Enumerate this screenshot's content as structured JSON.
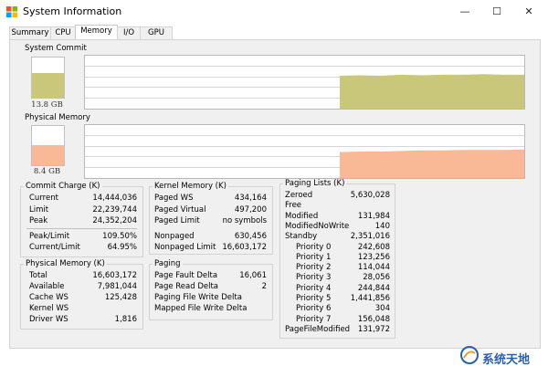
{
  "window": {
    "title": "System Information",
    "icon": "system-information-app-icon",
    "controls": [
      {
        "name": "minimize-button",
        "glyph": "—"
      },
      {
        "name": "maximize-button",
        "glyph": "☐"
      },
      {
        "name": "close-button",
        "glyph": "✕"
      }
    ]
  },
  "tabs": [
    {
      "label": "Summary",
      "active": false
    },
    {
      "label": "CPU",
      "active": false
    },
    {
      "label": "Memory",
      "active": true
    },
    {
      "label": "I/O",
      "active": false
    },
    {
      "label": "GPU",
      "active": false
    }
  ],
  "system_commit": {
    "label": "System Commit",
    "value": "13.8 GB",
    "gauge_fraction": 0.62,
    "color": "#c9c77a",
    "history": {
      "start_fraction": 0.58,
      "levels": [
        0.62,
        0.63,
        0.62,
        0.64,
        0.63,
        0.64,
        0.64,
        0.65,
        0.64,
        0.64
      ]
    }
  },
  "physical_memory_graph": {
    "label": "Physical Memory",
    "value": "8.4 GB",
    "gauge_fraction": 0.52,
    "color": "#f9b896",
    "history": {
      "start_fraction": 0.58,
      "levels": [
        0.49,
        0.5,
        0.5,
        0.51,
        0.52,
        0.52,
        0.53,
        0.53,
        0.53,
        0.54
      ]
    }
  },
  "commit_charge": {
    "title": "Commit Charge (K)",
    "rows": [
      {
        "label": "Current",
        "value": "14,444,036"
      },
      {
        "label": "Limit",
        "value": "22,239,744"
      },
      {
        "label": "Peak",
        "value": "24,352,204"
      }
    ],
    "rows2": [
      {
        "label": "Peak/Limit",
        "value": "109.50%"
      },
      {
        "label": "Current/Limit",
        "value": "64.95%"
      }
    ]
  },
  "physical_memory": {
    "title": "Physical Memory (K)",
    "rows": [
      {
        "label": "Total",
        "value": "16,603,172"
      },
      {
        "label": "Available",
        "value": "7,981,044"
      },
      {
        "label": "Cache WS",
        "value": "125,428"
      },
      {
        "label": "Kernel WS",
        "value": ""
      },
      {
        "label": "Driver WS",
        "value": "1,816"
      }
    ]
  },
  "kernel_memory": {
    "title": "Kernel Memory (K)",
    "rows": [
      {
        "label": "Paged WS",
        "value": "434,164"
      },
      {
        "label": "Paged Virtual",
        "value": "497,200"
      },
      {
        "label": "Paged Limit",
        "value": "no symbols"
      }
    ],
    "rows2": [
      {
        "label": "Nonpaged",
        "value": "630,456"
      },
      {
        "label": "Nonpaged Limit",
        "value": "16,603,172"
      }
    ]
  },
  "paging": {
    "title": "Paging",
    "rows": [
      {
        "label": "Page Fault Delta",
        "value": "16,061"
      },
      {
        "label": "Page Read Delta",
        "value": "2"
      },
      {
        "label": "Paging File Write Delta",
        "value": ""
      },
      {
        "label": "Mapped File Write Delta",
        "value": ""
      }
    ]
  },
  "paging_lists": {
    "title": "Paging Lists (K)",
    "rows": [
      {
        "label": "Zeroed",
        "value": "5,630,028",
        "indent": false
      },
      {
        "label": "Free",
        "value": "",
        "indent": false
      },
      {
        "label": "Modified",
        "value": "131,984",
        "indent": false
      },
      {
        "label": "ModifiedNoWrite",
        "value": "140",
        "indent": false
      },
      {
        "label": "Standby",
        "value": "2,351,016",
        "indent": false
      },
      {
        "label": "Priority 0",
        "value": "242,608",
        "indent": true
      },
      {
        "label": "Priority 1",
        "value": "123,256",
        "indent": true
      },
      {
        "label": "Priority 2",
        "value": "114,044",
        "indent": true
      },
      {
        "label": "Priority 3",
        "value": "28,056",
        "indent": true
      },
      {
        "label": "Priority 4",
        "value": "244,844",
        "indent": true
      },
      {
        "label": "Priority 5",
        "value": "1,441,856",
        "indent": true
      },
      {
        "label": "Priority 6",
        "value": "304",
        "indent": true
      },
      {
        "label": "Priority 7",
        "value": "156,048",
        "indent": true
      },
      {
        "label": "PageFileModified",
        "value": "131,972",
        "indent": false
      }
    ]
  },
  "watermark": {
    "text": "系统天地"
  }
}
